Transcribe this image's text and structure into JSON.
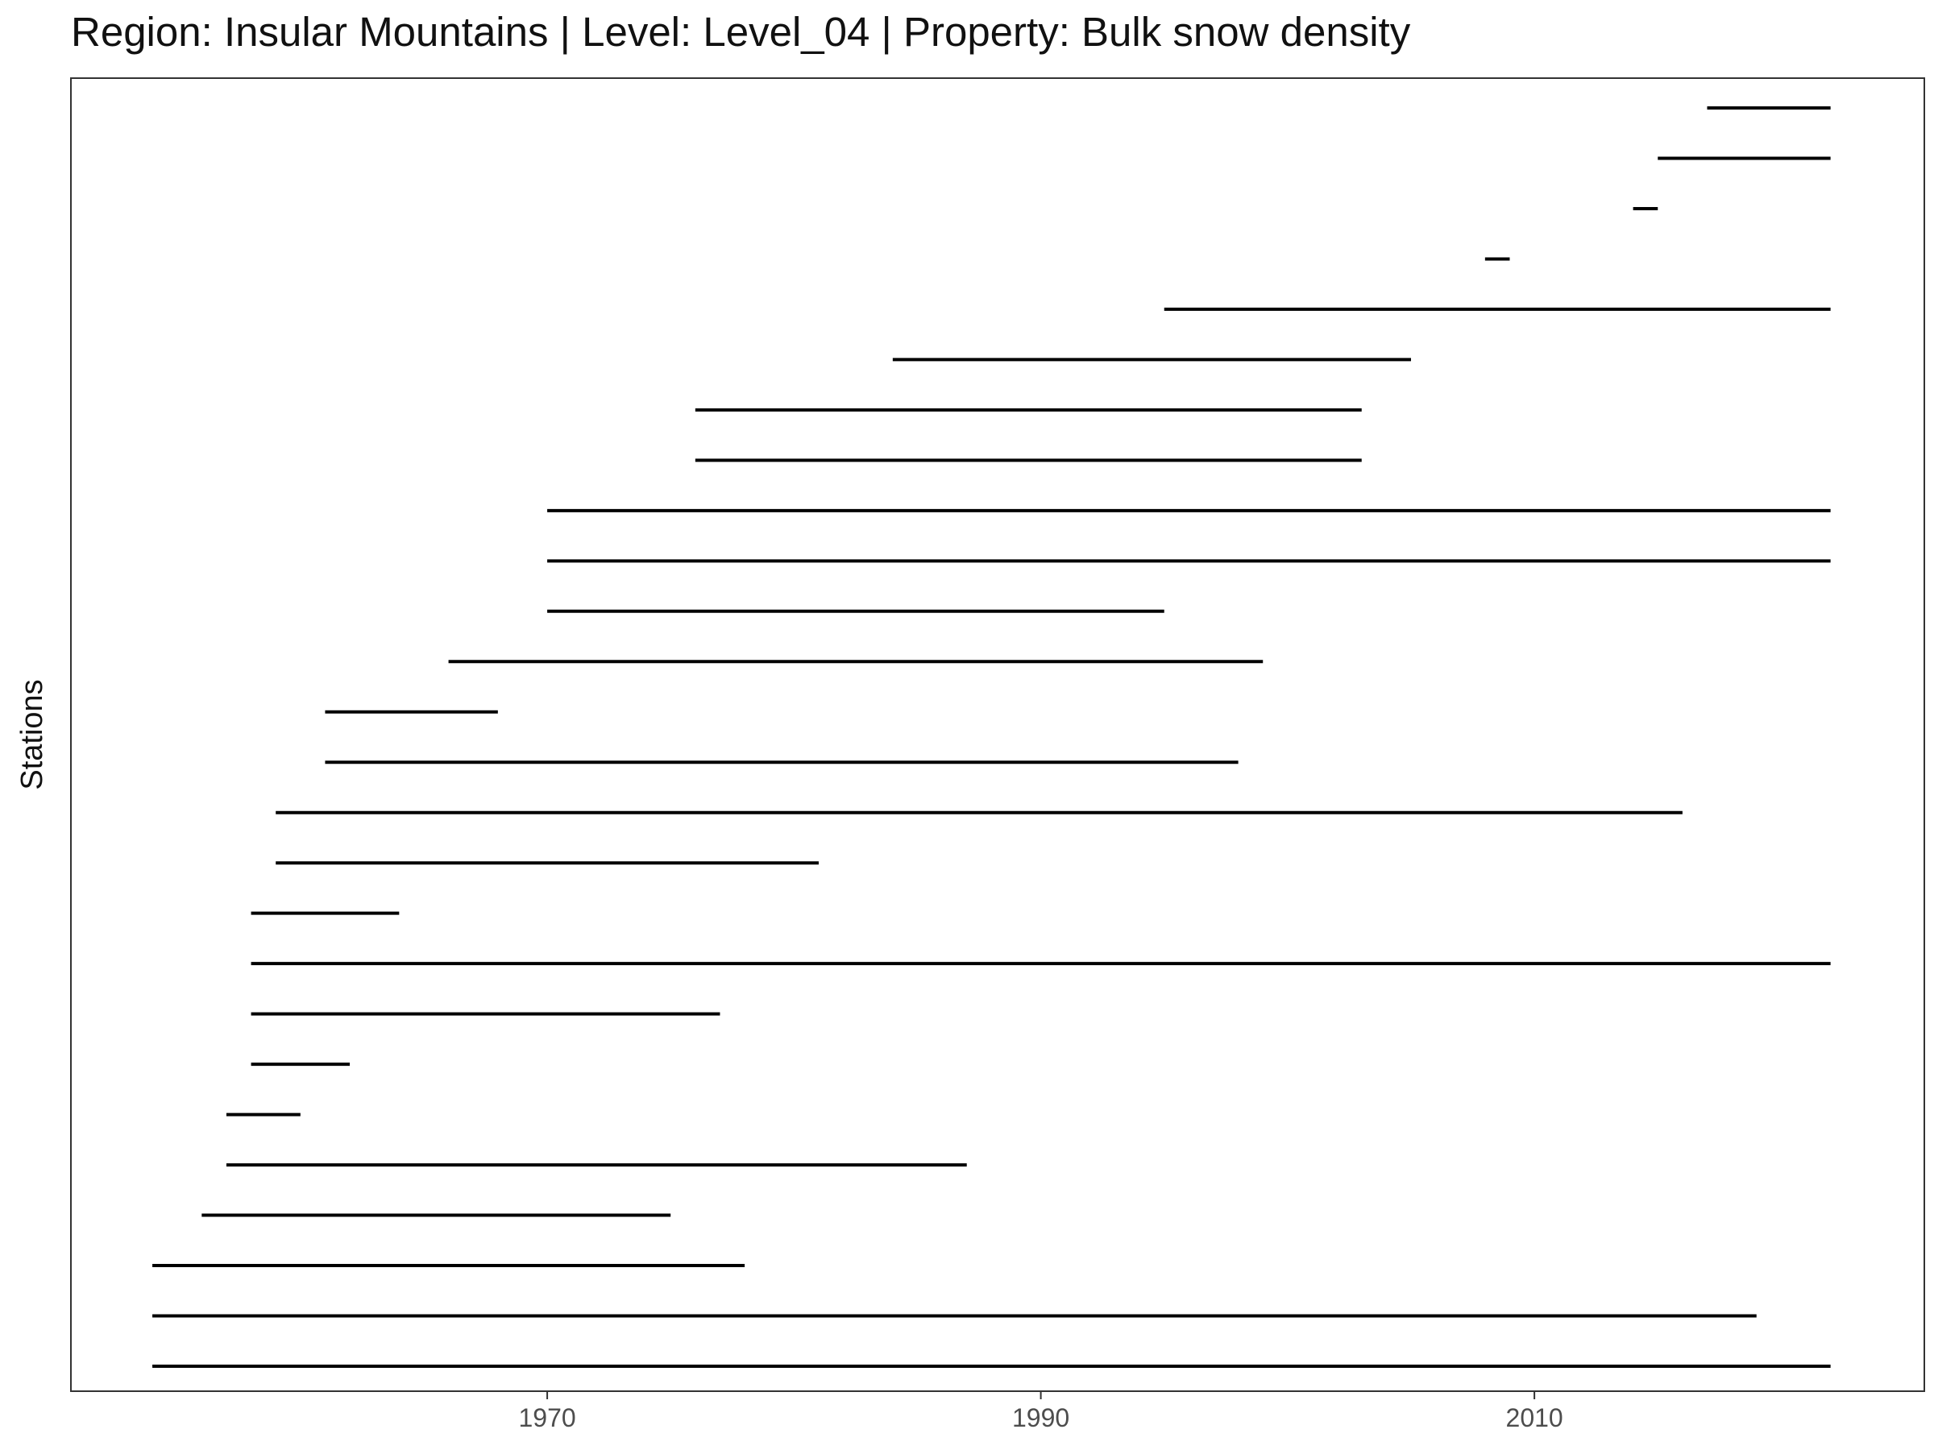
{
  "chart_data": {
    "type": "timeline",
    "title": "Region: Insular Mountains | Level: Level_04 | Property: Bulk snow density",
    "xlabel": "",
    "ylabel": "Stations",
    "x_ticks": [
      1970,
      1990,
      2010
    ],
    "xlim": [
      1950.7,
      2025.8
    ],
    "grid": false,
    "series": [
      {
        "start": 1954,
        "end": 2022
      },
      {
        "start": 1954,
        "end": 2019
      },
      {
        "start": 1954,
        "end": 1978
      },
      {
        "start": 1956,
        "end": 1975
      },
      {
        "start": 1957,
        "end": 1987
      },
      {
        "start": 1957,
        "end": 1960
      },
      {
        "start": 1958,
        "end": 1962
      },
      {
        "start": 1958,
        "end": 1977
      },
      {
        "start": 1958,
        "end": 2022
      },
      {
        "start": 1958,
        "end": 1964
      },
      {
        "start": 1959,
        "end": 1981
      },
      {
        "start": 1959,
        "end": 2016
      },
      {
        "start": 1961,
        "end": 1998
      },
      {
        "start": 1961,
        "end": 1968
      },
      {
        "start": 1966,
        "end": 1999
      },
      {
        "start": 1970,
        "end": 1995
      },
      {
        "start": 1970,
        "end": 2022
      },
      {
        "start": 1970,
        "end": 2022
      },
      {
        "start": 1976,
        "end": 2003
      },
      {
        "start": 1976,
        "end": 2003
      },
      {
        "start": 1984,
        "end": 2005
      },
      {
        "start": 1995,
        "end": 2022
      },
      {
        "start": 2008,
        "end": 2009
      },
      {
        "start": 2014,
        "end": 2015
      },
      {
        "start": 2015,
        "end": 2022
      },
      {
        "start": 2017,
        "end": 2022
      }
    ]
  }
}
